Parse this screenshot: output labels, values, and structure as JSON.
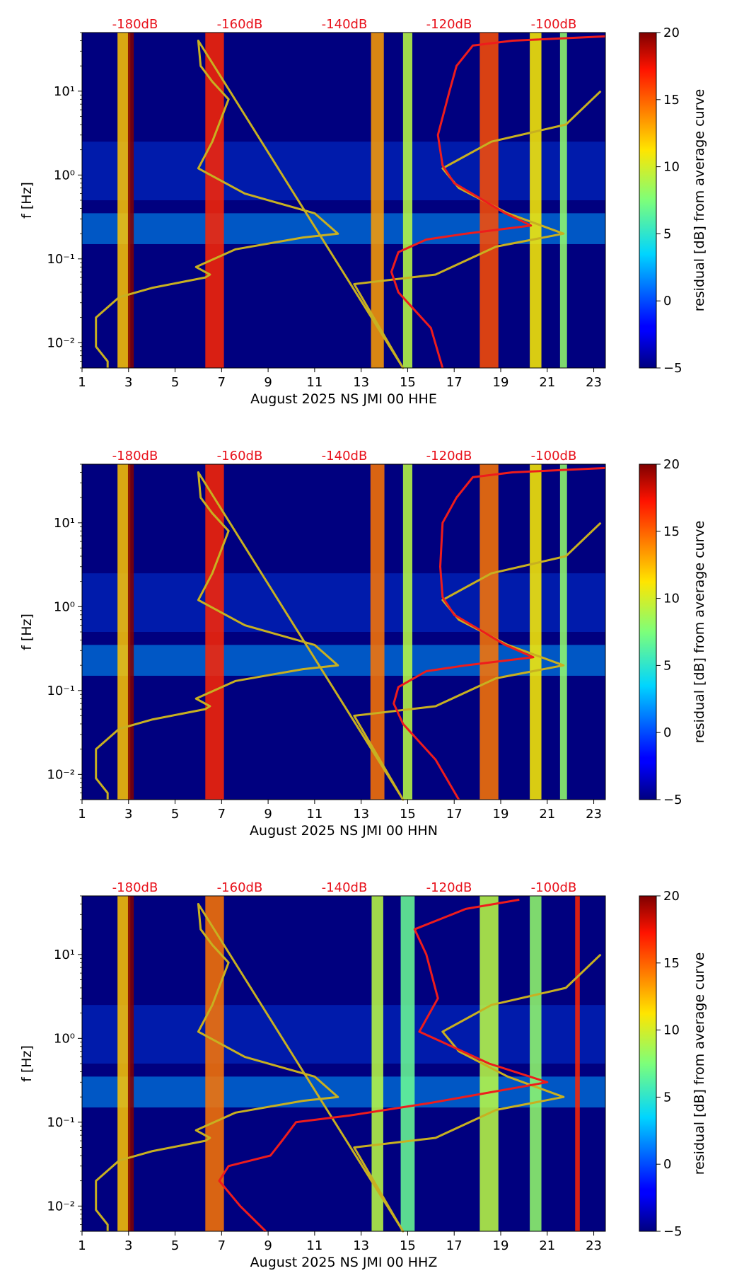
{
  "chart_data": [
    {
      "type": "heatmap",
      "title": "",
      "xlabel": "August 2025 NS JMI 00 HHE",
      "ylabel": "f [Hz]",
      "x_ticks": [
        "1",
        "3",
        "5",
        "7",
        "9",
        "11",
        "13",
        "15",
        "17",
        "19",
        "21",
        "23"
      ],
      "xlim": [
        1,
        23.5
      ],
      "ylim": [
        0.005,
        50
      ],
      "yscale": "log",
      "y_ticks": [
        "10⁻²",
        "10⁻¹",
        "10⁰",
        "10¹"
      ],
      "top_labels": [
        "-180dB",
        "-160dB",
        "-140dB",
        "-120dB",
        "-100dB"
      ],
      "colorbar": {
        "label": "residual [dB] from average curve",
        "range": [
          -5,
          20
        ],
        "ticks": [
          "−5",
          "0",
          "5",
          "10",
          "15",
          "20"
        ]
      },
      "bands": [
        {
          "day": 2.8,
          "width": 0.55,
          "value": 12
        },
        {
          "day": 3.1,
          "width": 0.25,
          "value": 20
        },
        {
          "day": 6.7,
          "width": 0.8,
          "value": 16
        },
        {
          "day": 13.7,
          "width": 0.55,
          "value": 13
        },
        {
          "day": 15.0,
          "width": 0.4,
          "value": 9
        },
        {
          "day": 18.5,
          "width": 0.8,
          "value": 15
        },
        {
          "day": 20.5,
          "width": 0.5,
          "value": 11
        },
        {
          "day": 21.7,
          "width": 0.3,
          "value": 8
        }
      ],
      "series": [
        {
          "name": "average curve",
          "color": "#c8b020",
          "points": [
            [
              2.1,
              0.005
            ],
            [
              2.1,
              0.006
            ],
            [
              1.6,
              0.009
            ],
            [
              1.6,
              0.02
            ],
            [
              2.6,
              0.035
            ],
            [
              4,
              0.045
            ],
            [
              6.3,
              0.06
            ],
            [
              6.5,
              0.065
            ],
            [
              5.9,
              0.08
            ],
            [
              7.6,
              0.13
            ],
            [
              10.5,
              0.18
            ],
            [
              12,
              0.2
            ],
            [
              11,
              0.35
            ],
            [
              8,
              0.6
            ],
            [
              6,
              1.2
            ],
            [
              6.6,
              2.5
            ],
            [
              7.3,
              8
            ],
            [
              6.6,
              13
            ],
            [
              6.1,
              20
            ],
            [
              6,
              40
            ],
            [
              14.8,
              0.005
            ],
            [
              12.7,
              0.05
            ],
            [
              16.2,
              0.065
            ],
            [
              18.8,
              0.14
            ],
            [
              21.7,
              0.2
            ],
            [
              19.3,
              0.35
            ],
            [
              17.2,
              0.7
            ],
            [
              16.5,
              1.2
            ],
            [
              18.6,
              2.5
            ],
            [
              21.8,
              4
            ],
            [
              23.3,
              10
            ]
          ]
        },
        {
          "name": "psd dB",
          "color": "#ee1c1c",
          "points": [
            [
              16.5,
              0.005
            ],
            [
              16,
              0.015
            ],
            [
              14.6,
              0.04
            ],
            [
              14.3,
              0.07
            ],
            [
              14.6,
              0.12
            ],
            [
              15.8,
              0.17
            ],
            [
              17.5,
              0.2
            ],
            [
              20.3,
              0.25
            ],
            [
              19.2,
              0.35
            ],
            [
              17,
              0.8
            ],
            [
              16.5,
              1.3
            ],
            [
              16.3,
              3
            ],
            [
              16.8,
              10
            ],
            [
              17.1,
              20
            ],
            [
              17.8,
              35
            ],
            [
              19.5,
              40
            ],
            [
              23.5,
              45
            ]
          ]
        }
      ]
    },
    {
      "type": "heatmap",
      "title": "",
      "xlabel": "August 2025 NS JMI 00 HHN",
      "ylabel": "f [Hz]",
      "x_ticks": [
        "1",
        "3",
        "5",
        "7",
        "9",
        "11",
        "13",
        "15",
        "17",
        "19",
        "21",
        "23"
      ],
      "xlim": [
        1,
        23.5
      ],
      "ylim": [
        0.005,
        50
      ],
      "yscale": "log",
      "y_ticks": [
        "10⁻²",
        "10⁻¹",
        "10⁰",
        "10¹"
      ],
      "top_labels": [
        "-180dB",
        "-160dB",
        "-140dB",
        "-120dB",
        "-100dB"
      ],
      "colorbar": {
        "label": "residual [dB] from average curve",
        "range": [
          -5,
          20
        ],
        "ticks": [
          "−5",
          "0",
          "5",
          "10",
          "15",
          "20"
        ]
      },
      "bands": [
        {
          "day": 2.8,
          "width": 0.55,
          "value": 12
        },
        {
          "day": 3.1,
          "width": 0.25,
          "value": 20
        },
        {
          "day": 6.7,
          "width": 0.8,
          "value": 16
        },
        {
          "day": 13.7,
          "width": 0.6,
          "value": 14
        },
        {
          "day": 15.0,
          "width": 0.4,
          "value": 9
        },
        {
          "day": 18.5,
          "width": 0.8,
          "value": 14
        },
        {
          "day": 20.5,
          "width": 0.5,
          "value": 11
        },
        {
          "day": 21.7,
          "width": 0.3,
          "value": 8
        }
      ],
      "series": [
        {
          "name": "average curve",
          "color": "#c8b020",
          "points": [
            [
              2.1,
              0.005
            ],
            [
              2.1,
              0.006
            ],
            [
              1.6,
              0.009
            ],
            [
              1.6,
              0.02
            ],
            [
              2.6,
              0.035
            ],
            [
              4,
              0.045
            ],
            [
              6.3,
              0.06
            ],
            [
              6.5,
              0.065
            ],
            [
              5.9,
              0.08
            ],
            [
              7.6,
              0.13
            ],
            [
              10.5,
              0.18
            ],
            [
              12,
              0.2
            ],
            [
              11,
              0.35
            ],
            [
              8,
              0.6
            ],
            [
              6,
              1.2
            ],
            [
              6.6,
              2.5
            ],
            [
              7.3,
              8
            ],
            [
              6.6,
              13
            ],
            [
              6.1,
              20
            ],
            [
              6,
              40
            ],
            [
              14.8,
              0.005
            ],
            [
              12.7,
              0.05
            ],
            [
              16.2,
              0.065
            ],
            [
              18.8,
              0.14
            ],
            [
              21.7,
              0.2
            ],
            [
              19.3,
              0.35
            ],
            [
              17.2,
              0.7
            ],
            [
              16.5,
              1.2
            ],
            [
              18.6,
              2.5
            ],
            [
              21.8,
              4
            ],
            [
              23.3,
              10
            ]
          ]
        },
        {
          "name": "psd dB",
          "color": "#ee1c1c",
          "points": [
            [
              17.2,
              0.005
            ],
            [
              16.2,
              0.015
            ],
            [
              14.8,
              0.04
            ],
            [
              14.4,
              0.07
            ],
            [
              14.6,
              0.11
            ],
            [
              15.8,
              0.17
            ],
            [
              17.5,
              0.2
            ],
            [
              20.4,
              0.25
            ],
            [
              19.2,
              0.35
            ],
            [
              17,
              0.8
            ],
            [
              16.5,
              1.3
            ],
            [
              16.4,
              3
            ],
            [
              16.5,
              10
            ],
            [
              17.1,
              20
            ],
            [
              17.8,
              35
            ],
            [
              19.5,
              40
            ],
            [
              23.5,
              45
            ]
          ]
        }
      ]
    },
    {
      "type": "heatmap",
      "title": "",
      "xlabel": "August 2025 NS JMI 00 HHZ",
      "ylabel": "f [Hz]",
      "x_ticks": [
        "1",
        "3",
        "5",
        "7",
        "9",
        "11",
        "13",
        "15",
        "17",
        "19",
        "21",
        "23"
      ],
      "xlim": [
        1,
        23.5
      ],
      "ylim": [
        0.005,
        50
      ],
      "yscale": "log",
      "y_ticks": [
        "10⁻²",
        "10⁻¹",
        "10⁰",
        "10¹"
      ],
      "top_labels": [
        "-180dB",
        "-160dB",
        "-140dB",
        "-120dB",
        "-100dB"
      ],
      "colorbar": {
        "label": "residual [dB] from average curve",
        "range": [
          -5,
          20
        ],
        "ticks": [
          "−5",
          "0",
          "5",
          "10",
          "15",
          "20"
        ]
      },
      "bands": [
        {
          "day": 2.8,
          "width": 0.55,
          "value": 12
        },
        {
          "day": 3.1,
          "width": 0.25,
          "value": 20
        },
        {
          "day": 6.7,
          "width": 0.8,
          "value": 14
        },
        {
          "day": 13.7,
          "width": 0.5,
          "value": 9
        },
        {
          "day": 15.0,
          "width": 0.6,
          "value": 7
        },
        {
          "day": 18.5,
          "width": 0.8,
          "value": 9
        },
        {
          "day": 20.5,
          "width": 0.5,
          "value": 8
        },
        {
          "day": 22.3,
          "width": 0.2,
          "value": 16
        }
      ],
      "series": [
        {
          "name": "average curve",
          "color": "#c8b020",
          "points": [
            [
              2.1,
              0.005
            ],
            [
              2.1,
              0.006
            ],
            [
              1.6,
              0.009
            ],
            [
              1.6,
              0.02
            ],
            [
              2.6,
              0.035
            ],
            [
              4,
              0.045
            ],
            [
              6.3,
              0.06
            ],
            [
              6.5,
              0.065
            ],
            [
              5.9,
              0.08
            ],
            [
              7.6,
              0.13
            ],
            [
              10.5,
              0.18
            ],
            [
              12,
              0.2
            ],
            [
              11,
              0.35
            ],
            [
              8,
              0.6
            ],
            [
              6,
              1.2
            ],
            [
              6.6,
              2.5
            ],
            [
              7.3,
              8
            ],
            [
              6.6,
              13
            ],
            [
              6.1,
              20
            ],
            [
              6,
              40
            ],
            [
              14.8,
              0.005
            ],
            [
              12.7,
              0.05
            ],
            [
              16.2,
              0.065
            ],
            [
              18.8,
              0.14
            ],
            [
              21.7,
              0.2
            ],
            [
              19.3,
              0.35
            ],
            [
              17.2,
              0.7
            ],
            [
              16.5,
              1.2
            ],
            [
              18.6,
              2.5
            ],
            [
              21.8,
              4
            ],
            [
              23.3,
              10
            ]
          ]
        },
        {
          "name": "psd dB",
          "color": "#ee1c1c",
          "points": [
            [
              8.9,
              0.005
            ],
            [
              7.8,
              0.01
            ],
            [
              6.9,
              0.02
            ],
            [
              7.3,
              0.03
            ],
            [
              9.1,
              0.04
            ],
            [
              9.6,
              0.06
            ],
            [
              10.2,
              0.1
            ],
            [
              12.5,
              0.12
            ],
            [
              16,
              0.17
            ],
            [
              21,
              0.3
            ],
            [
              18.5,
              0.5
            ],
            [
              16.5,
              0.9
            ],
            [
              15.5,
              1.2
            ],
            [
              16.3,
              3
            ],
            [
              15.8,
              10
            ],
            [
              15.3,
              20
            ],
            [
              17.5,
              35
            ],
            [
              19.8,
              45
            ]
          ]
        }
      ]
    }
  ]
}
